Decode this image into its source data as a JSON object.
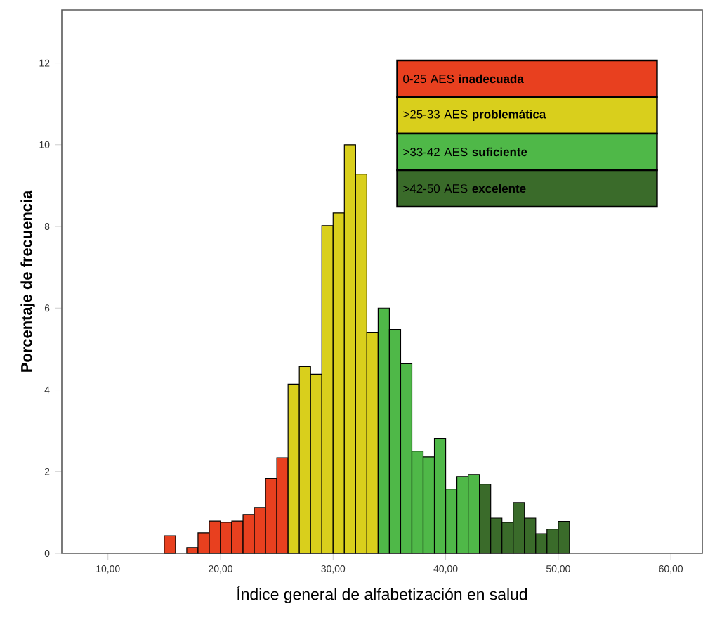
{
  "chart_data": {
    "type": "histogram",
    "xlabel": "Índice general de alfabetización en salud",
    "ylabel": "Porcentaje de frecuencia",
    "bins": [
      15,
      16,
      17,
      18,
      19,
      20,
      21,
      22,
      23,
      24,
      25,
      26,
      27,
      28,
      29,
      30,
      31,
      32,
      33,
      34,
      35,
      36,
      37,
      38,
      39,
      40,
      41,
      42,
      43,
      44,
      45,
      46,
      47,
      48,
      49,
      50,
      51
    ],
    "series": [
      {
        "name": "0-25 AES **inadecuada**",
        "color": "#e8401f",
        "values": [
          0.43,
          null,
          0.14,
          0.5,
          0.79,
          0.76,
          0.79,
          0.95,
          1.12,
          1.83,
          2.34,
          null,
          null,
          null,
          null,
          null,
          null,
          null,
          null,
          null,
          null,
          null,
          null,
          null,
          null,
          null,
          null,
          null,
          null,
          null,
          null,
          null,
          null,
          null,
          null,
          null
        ]
      },
      {
        "name": ">25-33 AES **problemática**",
        "color": "#d9cf1c",
        "values": [
          null,
          null,
          null,
          null,
          null,
          null,
          null,
          null,
          null,
          null,
          null,
          4.14,
          4.57,
          4.38,
          8.02,
          8.33,
          10.0,
          9.28,
          5.41,
          null,
          null,
          null,
          null,
          null,
          null,
          null,
          null,
          null,
          null,
          null,
          null,
          null,
          null,
          null,
          null,
          null
        ]
      },
      {
        "name": ">33-42 AES **suficiente**",
        "color": "#4fb848",
        "values": [
          null,
          null,
          null,
          null,
          null,
          null,
          null,
          null,
          null,
          null,
          null,
          null,
          null,
          null,
          null,
          null,
          null,
          null,
          null,
          6.0,
          5.48,
          4.64,
          2.5,
          2.36,
          2.81,
          1.57,
          1.88,
          1.93,
          null,
          null,
          null,
          null,
          null,
          null,
          null,
          null
        ]
      },
      {
        "name": ">42-50  AES **excelente**",
        "color": "#3a6b2a",
        "values": [
          null,
          null,
          null,
          null,
          null,
          null,
          null,
          null,
          null,
          null,
          null,
          null,
          null,
          null,
          null,
          null,
          null,
          null,
          null,
          null,
          null,
          null,
          null,
          null,
          null,
          null,
          null,
          null,
          1.69,
          0.86,
          0.76,
          1.24,
          0.86,
          0.48,
          0.59,
          0.78
        ]
      }
    ],
    "xlim": [
      5.9,
      62.8
    ],
    "ylim": [
      0,
      13.3
    ],
    "xticks": [
      {
        "value": 10,
        "label": "10,00"
      },
      {
        "value": 20,
        "label": "20,00"
      },
      {
        "value": 30,
        "label": "30,00"
      },
      {
        "value": 40,
        "label": "40,00"
      },
      {
        "value": 50,
        "label": "50,00"
      },
      {
        "value": 60,
        "label": "60,00"
      }
    ],
    "yticks": [
      0,
      2,
      4,
      6,
      8,
      10,
      12
    ],
    "legend": "top right"
  }
}
